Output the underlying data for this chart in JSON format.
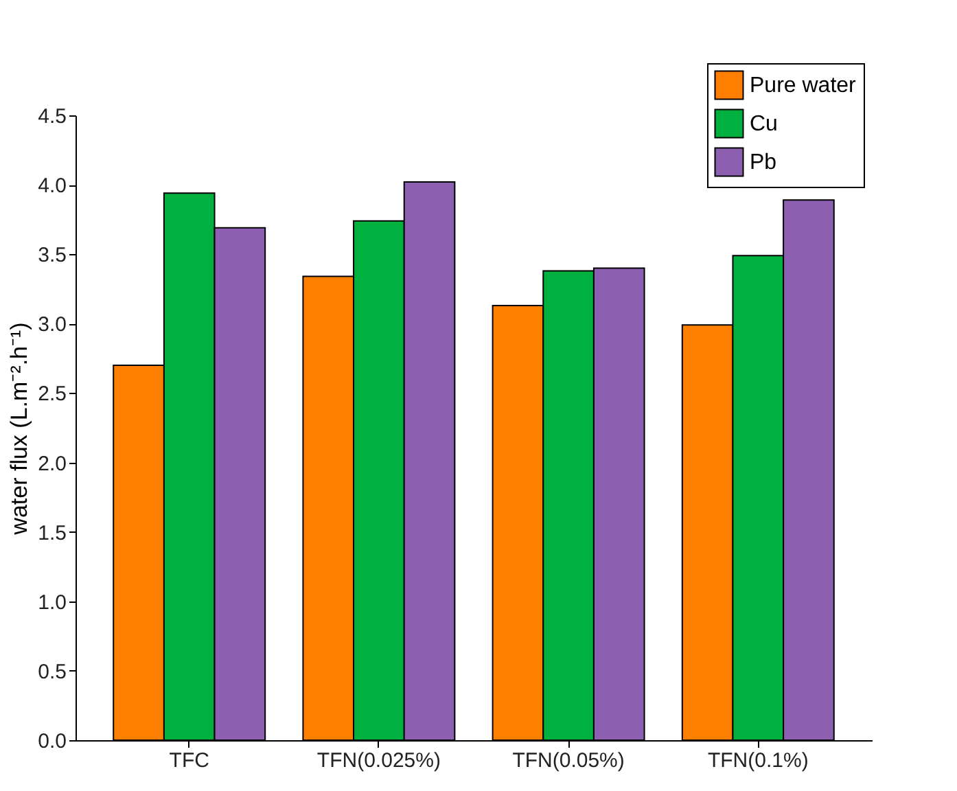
{
  "chart_data": {
    "type": "bar",
    "ylabel": "water flux (L.m⁻².h⁻¹)",
    "categories": [
      "TFC",
      "TFN(0.025%)",
      "TFN(0.05%)",
      "TFN(0.1%)"
    ],
    "series": [
      {
        "name": "Pure water",
        "color": "#ff8000",
        "values": [
          2.7,
          3.34,
          3.13,
          2.99
        ]
      },
      {
        "name": "Cu",
        "color": "#00b140",
        "values": [
          3.94,
          3.74,
          3.38,
          3.49
        ]
      },
      {
        "name": "Pb",
        "color": "#8c5fb0",
        "values": [
          3.69,
          4.02,
          3.4,
          3.89
        ]
      }
    ],
    "ylim": [
      0,
      4.5
    ],
    "yticks": [
      {
        "value": 0,
        "label": "0.0"
      },
      {
        "value": 0.5,
        "label": "0.5"
      },
      {
        "value": 1,
        "label": "1.0"
      },
      {
        "value": 1.5,
        "label": "1.5"
      },
      {
        "value": 2,
        "label": "2.0"
      },
      {
        "value": 2.5,
        "label": "2.5"
      },
      {
        "value": 3,
        "label": "3.0"
      },
      {
        "value": 3.5,
        "label": "3.5"
      },
      {
        "value": 4,
        "label": "4.0"
      },
      {
        "value": 4.5,
        "label": "4.5"
      }
    ],
    "grid": false,
    "legend": "top right"
  }
}
